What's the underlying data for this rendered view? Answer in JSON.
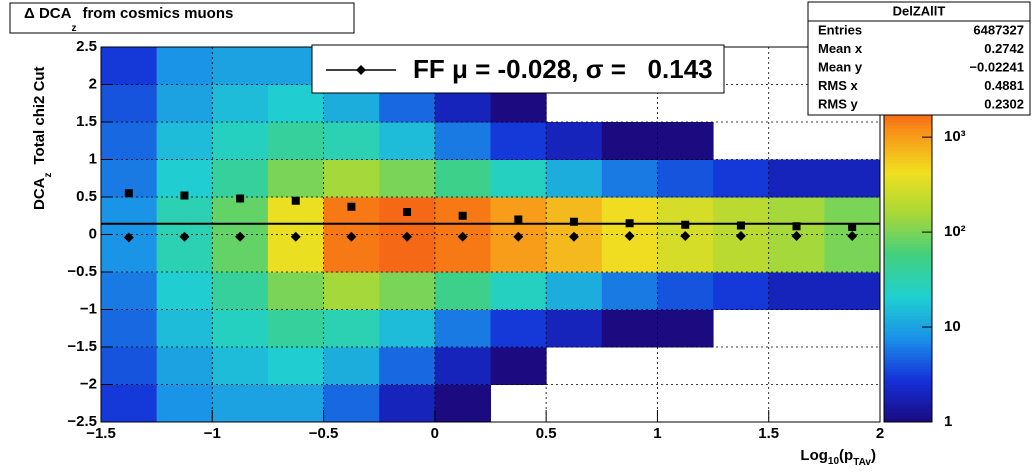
{
  "chart_data": {
    "type": "heatmap",
    "title_parts": [
      "Δ DCA",
      "z",
      "from cosmics muons"
    ],
    "ylabel_parts": [
      "DCA",
      "z",
      "Total chi2 Cut"
    ],
    "xlabel_parts": [
      "Log",
      "10",
      "(p",
      "TAv",
      ")"
    ],
    "xlim": [
      -1.5,
      2
    ],
    "ylim": [
      -2.5,
      2.5
    ],
    "xticks": [
      {
        "value": -1.5,
        "label": "−1.5"
      },
      {
        "value": -1,
        "label": "−1"
      },
      {
        "value": -0.5,
        "label": "−0.5"
      },
      0,
      0.5,
      1,
      1.5,
      2
    ],
    "yticks": [
      {
        "value": -2.5,
        "label": "−2.5"
      },
      {
        "value": -2,
        "label": "−2"
      },
      {
        "value": -1.5,
        "label": "−1.5"
      },
      {
        "value": -1,
        "label": "−1"
      },
      {
        "value": -0.5,
        "label": "−0.5"
      },
      0,
      0.5,
      1,
      1.5,
      2,
      2.5
    ],
    "grid": true,
    "zlim": [
      1,
      8900
    ],
    "zlog": true,
    "zticks": [
      1,
      10,
      {
        "value": 100,
        "label": "10²"
      },
      {
        "value": 1000,
        "label": "10³"
      }
    ],
    "colorscale": [
      "#1b0a80",
      "#1530d8",
      "#1a90e8",
      "#20d0d0",
      "#40d080",
      "#a8d838",
      "#f0e020",
      "#f89018",
      "#f03010",
      "#b01008"
    ],
    "xbins": [
      -1.5,
      -1.25,
      -1,
      -0.75,
      -0.5,
      -0.25,
      0,
      0.25,
      0.5,
      0.75,
      1,
      1.25,
      1.5,
      1.75,
      2
    ],
    "ybins": [
      -2.5,
      -2,
      -1.5,
      -1,
      -0.5,
      0,
      0.5,
      1,
      1.5,
      2,
      2.5
    ],
    "counts": [
      [
        3,
        8,
        10,
        10,
        5,
        2,
        1,
        null,
        null,
        null,
        null,
        null,
        null,
        null
      ],
      [
        4,
        10,
        15,
        20,
        12,
        5,
        2,
        1,
        null,
        null,
        null,
        null,
        null,
        null
      ],
      [
        5,
        15,
        25,
        40,
        30,
        15,
        6,
        3,
        2,
        1,
        1,
        null,
        null,
        null
      ],
      [
        6,
        20,
        40,
        100,
        150,
        100,
        50,
        25,
        12,
        6,
        4,
        3,
        2,
        2
      ],
      [
        8,
        30,
        80,
        400,
        1500,
        1800,
        1500,
        1000,
        700,
        450,
        300,
        200,
        150,
        100
      ],
      [
        8,
        30,
        80,
        400,
        1500,
        1800,
        1500,
        1000,
        700,
        450,
        300,
        200,
        150,
        100
      ],
      [
        6,
        20,
        40,
        100,
        150,
        100,
        50,
        25,
        12,
        6,
        4,
        3,
        2,
        2
      ],
      [
        5,
        15,
        25,
        40,
        30,
        15,
        6,
        3,
        2,
        1,
        1,
        null,
        null,
        null
      ],
      [
        4,
        10,
        15,
        20,
        12,
        5,
        2,
        1,
        null,
        null,
        null,
        null,
        null,
        null
      ],
      [
        3,
        8,
        10,
        10,
        5,
        2,
        1,
        null,
        null,
        null,
        null,
        null,
        null,
        null
      ]
    ],
    "profile_x": [
      -1.375,
      -1.125,
      -0.875,
      -0.625,
      -0.375,
      -0.125,
      0.125,
      0.375,
      0.625,
      0.875,
      1.125,
      1.375,
      1.625,
      1.875
    ],
    "series": [
      {
        "name": "rms",
        "color": "#000000",
        "marker": "square",
        "values": [
          0.55,
          0.52,
          0.48,
          0.45,
          0.37,
          0.3,
          0.25,
          0.2,
          0.17,
          0.15,
          0.13,
          0.12,
          0.11,
          0.1
        ]
      },
      {
        "name": "mean",
        "color": "#000000",
        "marker": "diamond",
        "values": [
          -0.04,
          -0.03,
          -0.03,
          -0.03,
          -0.03,
          -0.03,
          -0.03,
          -0.03,
          -0.03,
          -0.02,
          -0.02,
          -0.02,
          -0.02,
          -0.02
        ]
      }
    ],
    "fit_line": 0.143,
    "legend_text": "FF μ = -0.028, σ =   0.143",
    "stats": {
      "title": "DelZAllT",
      "rows": [
        [
          "Entries",
          "6487327"
        ],
        [
          "Mean x",
          "0.2742"
        ],
        [
          "Mean y",
          "−0.02241"
        ],
        [
          "RMS x",
          "0.4881"
        ],
        [
          "RMS y",
          "0.2302"
        ]
      ]
    }
  }
}
